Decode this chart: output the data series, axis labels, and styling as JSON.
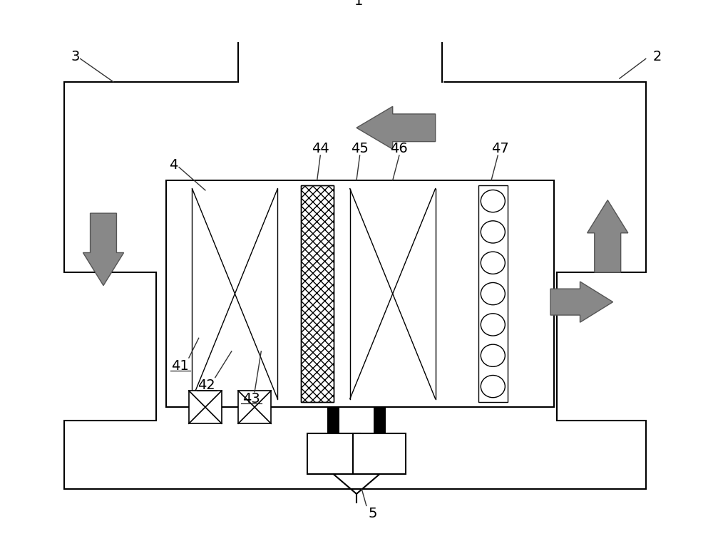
{
  "bg_color": "#ffffff",
  "line_color": "#000000",
  "arrow_fill": "#888888",
  "arrow_edge": "#555555",
  "lw": 1.5,
  "fig_w": 10.0,
  "fig_h": 7.8
}
